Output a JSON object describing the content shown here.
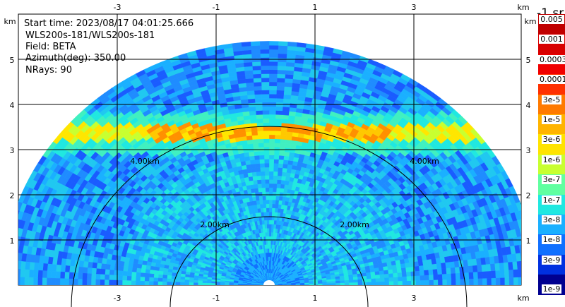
{
  "info": {
    "start_time": "Start time: 2023/08/17 04:01:25.666",
    "instrument": "WLS200s-181/WLS200s-181",
    "field": "Field: BETA",
    "azimuth": "Azimuth(deg): 350.00",
    "nrays": "NRays: 90"
  },
  "axes": {
    "x_unit": "km",
    "y_unit": "km",
    "x_ticks": [
      "-3",
      "-1",
      "1",
      "3"
    ],
    "y_ticks": [
      "1",
      "2",
      "3",
      "4",
      "5"
    ],
    "range_rings": [
      "2.00km",
      "4.00km"
    ]
  },
  "colorbar": {
    "title": "-1 sr",
    "labels": [
      "0.005",
      "0.001",
      "0.0003",
      "0.0001",
      "3e-5",
      "1e-5",
      "3e-6",
      "1e-6",
      "3e-7",
      "1e-7",
      "3e-8",
      "1e-8",
      "3e-9",
      "1e-9"
    ],
    "colors": [
      "#c00000",
      "#d80000",
      "#f00000",
      "#ff3000",
      "#ff7a00",
      "#ffb400",
      "#ffe300",
      "#c8ff30",
      "#60ffa0",
      "#20e8e0",
      "#1ab0ff",
      "#1070ff",
      "#0030e0",
      "#000090"
    ]
  }
}
